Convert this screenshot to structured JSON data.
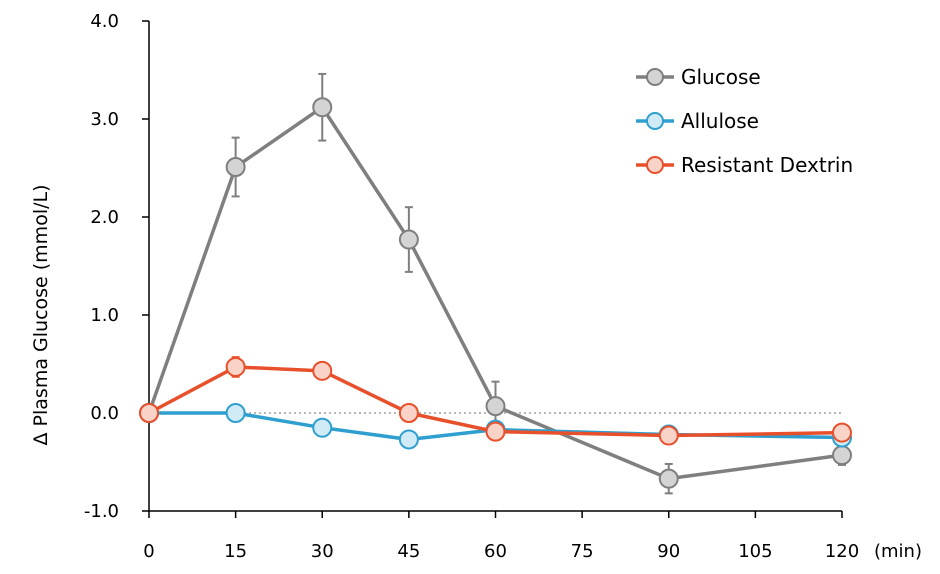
{
  "chart_data": {
    "type": "line",
    "x": [
      0,
      15,
      30,
      45,
      60,
      90,
      120
    ],
    "xticks": [
      "0",
      "15",
      "30",
      "45",
      "60",
      "75",
      "90",
      "105",
      "120"
    ],
    "xtick_values": [
      0,
      15,
      30,
      45,
      60,
      75,
      90,
      105,
      120
    ],
    "xunit": "(min)",
    "yticks": [
      "-1.0",
      "0.0",
      "1.0",
      "2.0",
      "3.0",
      "4.0"
    ],
    "ytick_values": [
      -1,
      0,
      1,
      2,
      3,
      4
    ],
    "ylabel": "Δ Plasma Glucose (mmol/L)",
    "xlim": [
      0,
      120
    ],
    "ylim": [
      -1,
      4
    ],
    "legend_position": "top-right",
    "series": [
      {
        "name": "Glucose",
        "color": "#7f7f7f",
        "marker_fill": "#d4d4d4",
        "values": [
          0.0,
          2.51,
          3.12,
          1.77,
          0.07,
          -0.67,
          -0.43
        ],
        "error": [
          0,
          0.3,
          0.34,
          0.33,
          0.25,
          0.15,
          0.1
        ]
      },
      {
        "name": "Allulose",
        "color": "#2e9fcf",
        "marker_fill": "#d0ebf5",
        "values": [
          0.0,
          0.0,
          -0.15,
          -0.27,
          -0.17,
          -0.22,
          -0.25
        ],
        "error": [
          0,
          0,
          0,
          0,
          0,
          0,
          0
        ]
      },
      {
        "name": "Resistant Dextrin",
        "color": "#e8502c",
        "marker_fill": "#f9d3c8",
        "values": [
          0.0,
          0.47,
          0.43,
          0.0,
          -0.19,
          -0.23,
          -0.2
        ],
        "error": [
          0,
          0.1,
          0,
          0,
          0,
          0,
          0
        ]
      }
    ]
  }
}
